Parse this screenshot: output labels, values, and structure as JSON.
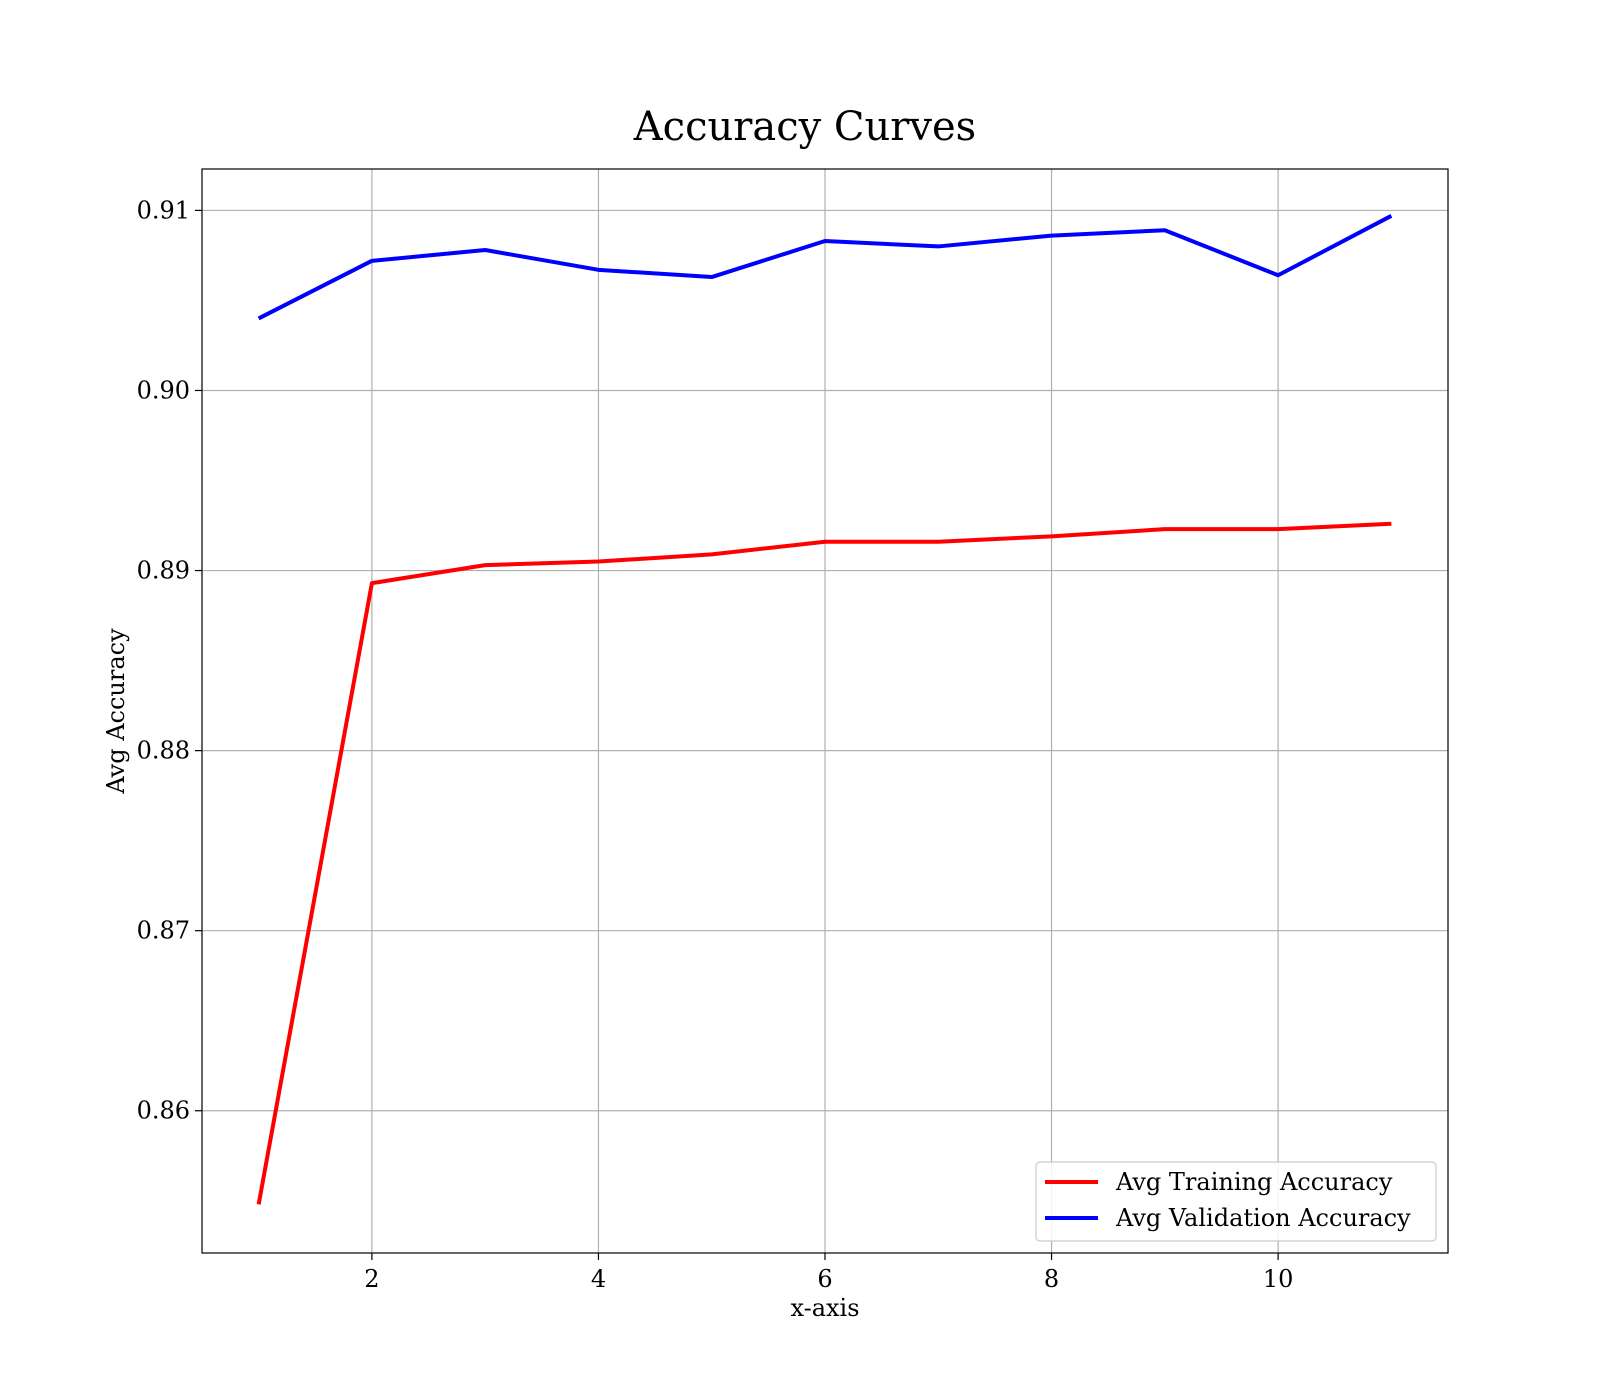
{
  "chart_data": {
    "type": "line",
    "title": "Accuracy Curves",
    "xlabel": "x-axis",
    "ylabel": "Avg Accuracy",
    "xlim": [
      0.5,
      11.5
    ],
    "ylim": [
      0.8521,
      0.9123
    ],
    "xticks": [
      2,
      4,
      6,
      8,
      10
    ],
    "xtick_labels": [
      "2",
      "4",
      "6",
      "8",
      "10"
    ],
    "yticks": [
      0.86,
      0.87,
      0.88,
      0.89,
      0.9,
      0.91
    ],
    "ytick_labels": [
      "0.86",
      "0.87",
      "0.88",
      "0.89",
      "0.90",
      "0.91"
    ],
    "grid": true,
    "legend_position": "bottom-right",
    "x": [
      1,
      2,
      3,
      4,
      5,
      6,
      7,
      8,
      9,
      10,
      11
    ],
    "series": [
      {
        "name": "Avg Training Accuracy",
        "color": "#ff0000",
        "values": [
          0.8548,
          0.8893,
          0.8903,
          0.8905,
          0.8909,
          0.8916,
          0.8916,
          0.8919,
          0.8923,
          0.8923,
          0.8926
        ]
      },
      {
        "name": "Avg Validation Accuracy",
        "color": "#0000ff",
        "values": [
          0.904,
          0.9072,
          0.9078,
          0.9067,
          0.9063,
          0.9083,
          0.908,
          0.9086,
          0.9089,
          0.9064,
          0.9097
        ]
      }
    ]
  }
}
